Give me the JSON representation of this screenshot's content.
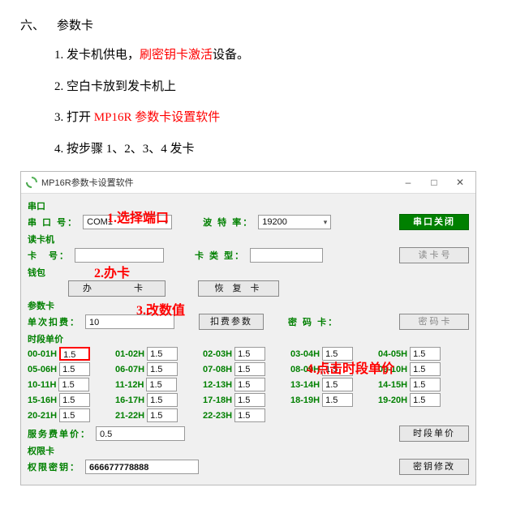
{
  "page": {
    "heading_prefix": "六、",
    "heading_label": "参数卡",
    "steps": [
      {
        "num": "1.",
        "before": "发卡机供电，",
        "red": "刷密钥卡激活",
        "after": "设备。"
      },
      {
        "num": "2.",
        "before": "空白卡放到发卡机上",
        "red": "",
        "after": ""
      },
      {
        "num": "3.",
        "before": "打开 ",
        "red": "MP16R 参数卡设置软件",
        "after": ""
      },
      {
        "num": "4.",
        "before": "按步骤 1、2、3、4 发卡",
        "red": "",
        "after": ""
      }
    ]
  },
  "window": {
    "title": "MP16R参数卡设置软件",
    "btn_min": "–",
    "btn_max": "□",
    "btn_close": "✕",
    "icon_color_a": "#56b35a",
    "icon_color_b": "#4aa84e"
  },
  "annotations": {
    "a1": "1.选择端口",
    "a2": "2.办卡",
    "a3": "3.改数值",
    "a4": "4.点击时段单价"
  },
  "serial": {
    "section": "串口",
    "port_label": "串 口 号：",
    "port_value": "COM1",
    "baud_label": "波 特 率：",
    "baud_value": "19200",
    "close_btn": "串口关闭"
  },
  "reader": {
    "section": "读卡机",
    "cardno_label": "卡　号：",
    "cardno_value": "",
    "cardtype_label": "卡 类 型：",
    "cardtype_value": "",
    "read_btn": "读 卡 号"
  },
  "wallet": {
    "section": "钱包",
    "issue_btn": "办　　卡",
    "restore_btn": "恢 复 卡"
  },
  "param": {
    "section": "参数卡",
    "deduct_label": "单次扣费：",
    "deduct_value": "10",
    "deduct_btn": "扣费参数",
    "pwd_label": "密 码 卡：",
    "pwd_btn": "密 码 卡"
  },
  "period": {
    "section": "时段单价",
    "cells": [
      {
        "label": "00-01H",
        "value": "1.5",
        "hl": true
      },
      {
        "label": "01-02H",
        "value": "1.5"
      },
      {
        "label": "02-03H",
        "value": "1.5"
      },
      {
        "label": "03-04H",
        "value": "1.5"
      },
      {
        "label": "04-05H",
        "value": "1.5"
      },
      {
        "label": "05-06H",
        "value": "1.5"
      },
      {
        "label": "06-07H",
        "value": "1.5"
      },
      {
        "label": "07-08H",
        "value": "1.5"
      },
      {
        "label": "08-09H",
        "value": "1.5"
      },
      {
        "label": "09-10H",
        "value": "1.5"
      },
      {
        "label": "10-11H",
        "value": "1.5"
      },
      {
        "label": "11-12H",
        "value": "1.5"
      },
      {
        "label": "12-13H",
        "value": "1.5"
      },
      {
        "label": "13-14H",
        "value": "1.5"
      },
      {
        "label": "14-15H",
        "value": "1.5"
      },
      {
        "label": "15-16H",
        "value": "1.5"
      },
      {
        "label": "16-17H",
        "value": "1.5"
      },
      {
        "label": "17-18H",
        "value": "1.5"
      },
      {
        "label": "18-19H",
        "value": "1.5"
      },
      {
        "label": "19-20H",
        "value": "1.5"
      },
      {
        "label": "20-21H",
        "value": "1.5"
      },
      {
        "label": "21-22H",
        "value": "1.5"
      },
      {
        "label": "22-23H",
        "value": "1.5"
      }
    ],
    "fee_label": "服务费单价：",
    "fee_value": "0.5",
    "period_btn": "时段单价"
  },
  "auth": {
    "section": "权限卡",
    "key_label": "权限密钥：",
    "key_value": "666677778888",
    "key_btn": "密钥修改"
  },
  "colors": {
    "green": "#008000",
    "red": "#ff0000",
    "bg": "#f0f0f0",
    "border": "#999999"
  }
}
